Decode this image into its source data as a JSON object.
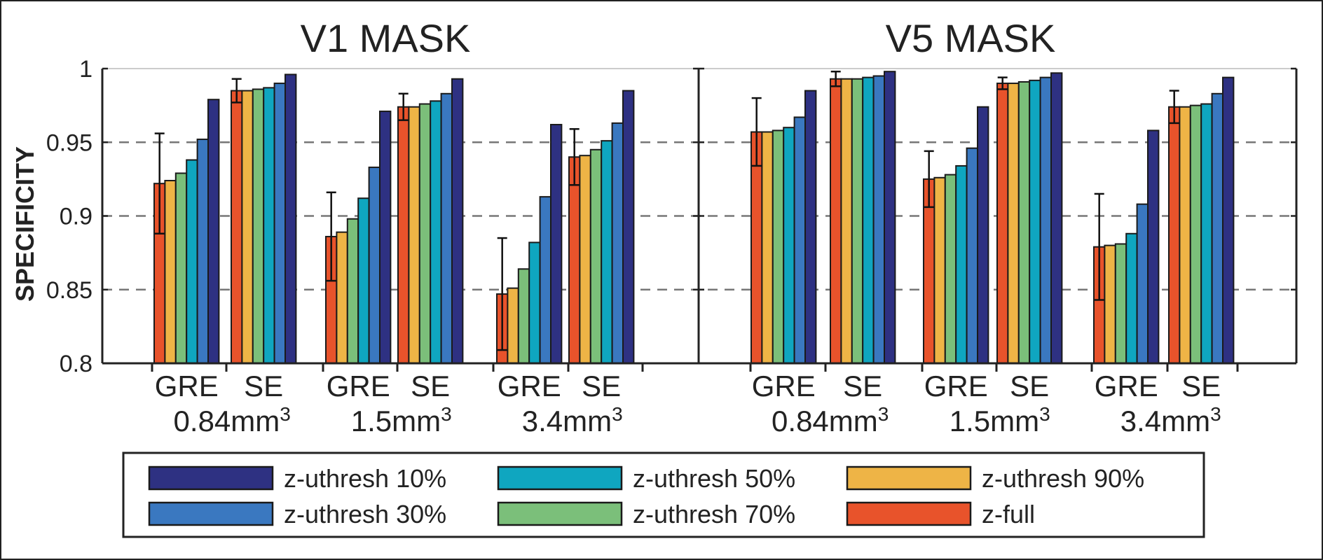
{
  "chart_data": {
    "type": "bar",
    "ylabel": "SPECIFICITY",
    "ylim": [
      0.8,
      1
    ],
    "yticks": [
      "0.8",
      "0.85",
      "0.9",
      "0.95",
      "1"
    ],
    "series_order": [
      "z-full",
      "z-uthresh 90%",
      "z-uthresh 70%",
      "z-uthresh 50%",
      "z-uthresh 30%",
      "z-uthresh 10%"
    ],
    "colors": {
      "z-full": "#e8532b",
      "z-uthresh 90%": "#eeb446",
      "z-uthresh 70%": "#7bbf7a",
      "z-uthresh 50%": "#0fa6c0",
      "z-uthresh 30%": "#3a78c0",
      "z-uthresh 10%": "#2e3182"
    },
    "legend": {
      "items": [
        {
          "label": "z-uthresh 10%",
          "color": "#2e3182"
        },
        {
          "label": "z-uthresh 50%",
          "color": "#0fa6c0"
        },
        {
          "label": "z-uthresh 90%",
          "color": "#eeb446"
        },
        {
          "label": "z-uthresh 30%",
          "color": "#3a78c0"
        },
        {
          "label": "z-uthresh 70%",
          "color": "#7bbf7a"
        },
        {
          "label": "z-full",
          "color": "#e8532b"
        }
      ]
    },
    "panels": [
      {
        "title": "V1 MASK",
        "groups": [
          {
            "category": "GRE",
            "resolution": "0.84mm",
            "values": [
              0.922,
              0.924,
              0.929,
              0.938,
              0.952,
              0.979
            ],
            "error": 0.034
          },
          {
            "category": "SE",
            "resolution": "0.84mm",
            "values": [
              0.985,
              0.985,
              0.986,
              0.987,
              0.99,
              0.996
            ],
            "error": 0.008
          },
          {
            "category": "GRE",
            "resolution": "1.5mm",
            "values": [
              0.886,
              0.889,
              0.898,
              0.912,
              0.933,
              0.971
            ],
            "error": 0.03
          },
          {
            "category": "SE",
            "resolution": "1.5mm",
            "values": [
              0.974,
              0.974,
              0.976,
              0.978,
              0.983,
              0.993
            ],
            "error": 0.009
          },
          {
            "category": "GRE",
            "resolution": "3.4mm",
            "values": [
              0.847,
              0.851,
              0.864,
              0.882,
              0.913,
              0.962
            ],
            "error": 0.038
          },
          {
            "category": "SE",
            "resolution": "3.4mm",
            "values": [
              0.94,
              0.941,
              0.945,
              0.951,
              0.963,
              0.985
            ],
            "error": 0.019
          }
        ]
      },
      {
        "title": "V5 MASK",
        "groups": [
          {
            "category": "GRE",
            "resolution": "0.84mm",
            "values": [
              0.957,
              0.957,
              0.958,
              0.96,
              0.967,
              0.985
            ],
            "error": 0.023
          },
          {
            "category": "SE",
            "resolution": "0.84mm",
            "values": [
              0.993,
              0.993,
              0.993,
              0.994,
              0.995,
              0.998
            ],
            "error": 0.005
          },
          {
            "category": "GRE",
            "resolution": "1.5mm",
            "values": [
              0.925,
              0.926,
              0.928,
              0.934,
              0.946,
              0.974
            ],
            "error": 0.019
          },
          {
            "category": "SE",
            "resolution": "1.5mm",
            "values": [
              0.99,
              0.99,
              0.991,
              0.992,
              0.994,
              0.997
            ],
            "error": 0.004
          },
          {
            "category": "GRE",
            "resolution": "3.4mm",
            "values": [
              0.879,
              0.88,
              0.881,
              0.888,
              0.908,
              0.958
            ],
            "error": 0.036
          },
          {
            "category": "SE",
            "resolution": "3.4mm",
            "values": [
              0.974,
              0.974,
              0.975,
              0.976,
              0.983,
              0.994
            ],
            "error": 0.011
          }
        ]
      }
    ],
    "resolution_labels": [
      "0.84mm",
      "1.5mm",
      "3.4mm"
    ],
    "resolution_superscript": "3"
  }
}
